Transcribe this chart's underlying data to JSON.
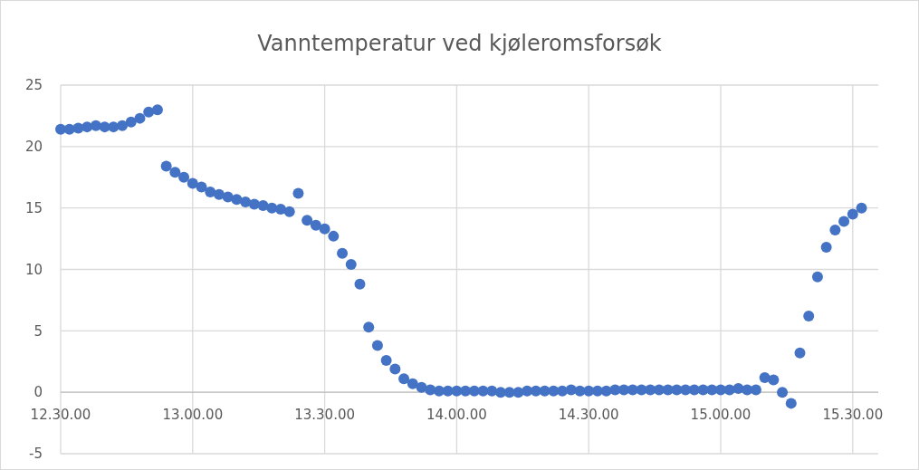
{
  "chart_data": {
    "type": "scatter",
    "title": "Vanntemperatur ved kjøleromsforsøk",
    "categories": [
      "12.30.00",
      null,
      null,
      null,
      null,
      null,
      null,
      null,
      null,
      null,
      null,
      null,
      null,
      null,
      null,
      "13.00.00",
      null,
      null,
      null,
      null,
      null,
      null,
      null,
      null,
      null,
      null,
      null,
      null,
      null,
      null,
      "13.30.00",
      null,
      null,
      null,
      null,
      null,
      null,
      null,
      null,
      null,
      null,
      null,
      null,
      null,
      null,
      "14.00.00",
      null,
      null,
      null,
      null,
      null,
      null,
      null,
      null,
      null,
      null,
      null,
      null,
      null,
      null,
      "14.30.00",
      null,
      null,
      null,
      null,
      null,
      null,
      null,
      null,
      null,
      null,
      null,
      null,
      null,
      null,
      "15.00.00",
      null,
      null,
      null,
      null,
      null,
      null,
      null,
      null,
      null,
      null,
      null,
      null,
      null,
      null,
      "15.30.00",
      null
    ],
    "series": [
      {
        "color": "#4472c4",
        "values": [
          21.4,
          21.4,
          21.5,
          21.6,
          21.7,
          21.6,
          21.6,
          21.7,
          22.0,
          22.3,
          22.8,
          23.0,
          18.4,
          17.9,
          17.5,
          17.0,
          16.7,
          16.3,
          16.1,
          15.9,
          15.7,
          15.5,
          15.3,
          15.2,
          15.0,
          14.9,
          14.7,
          16.2,
          14.0,
          13.6,
          13.3,
          12.7,
          11.3,
          10.4,
          8.8,
          5.3,
          3.8,
          2.6,
          1.9,
          1.1,
          0.7,
          0.4,
          0.2,
          0.1,
          0.1,
          0.1,
          0.1,
          0.1,
          0.1,
          0.1,
          0.0,
          0.0,
          0.0,
          0.1,
          0.1,
          0.1,
          0.1,
          0.1,
          0.2,
          0.1,
          0.1,
          0.1,
          0.1,
          0.2,
          0.2,
          0.2,
          0.2,
          0.2,
          0.2,
          0.2,
          0.2,
          0.2,
          0.2,
          0.2,
          0.2,
          0.2,
          0.2,
          0.3,
          0.2,
          0.2,
          1.2,
          1.0,
          0.0,
          -0.9,
          3.2,
          6.2,
          9.4,
          11.8,
          13.2,
          13.9,
          14.5,
          15.0
        ]
      }
    ],
    "ylim": [
      -5,
      25
    ],
    "yticks": [
      -5,
      0,
      5,
      10,
      15,
      20,
      25
    ],
    "grid": true,
    "marker": "circle"
  }
}
